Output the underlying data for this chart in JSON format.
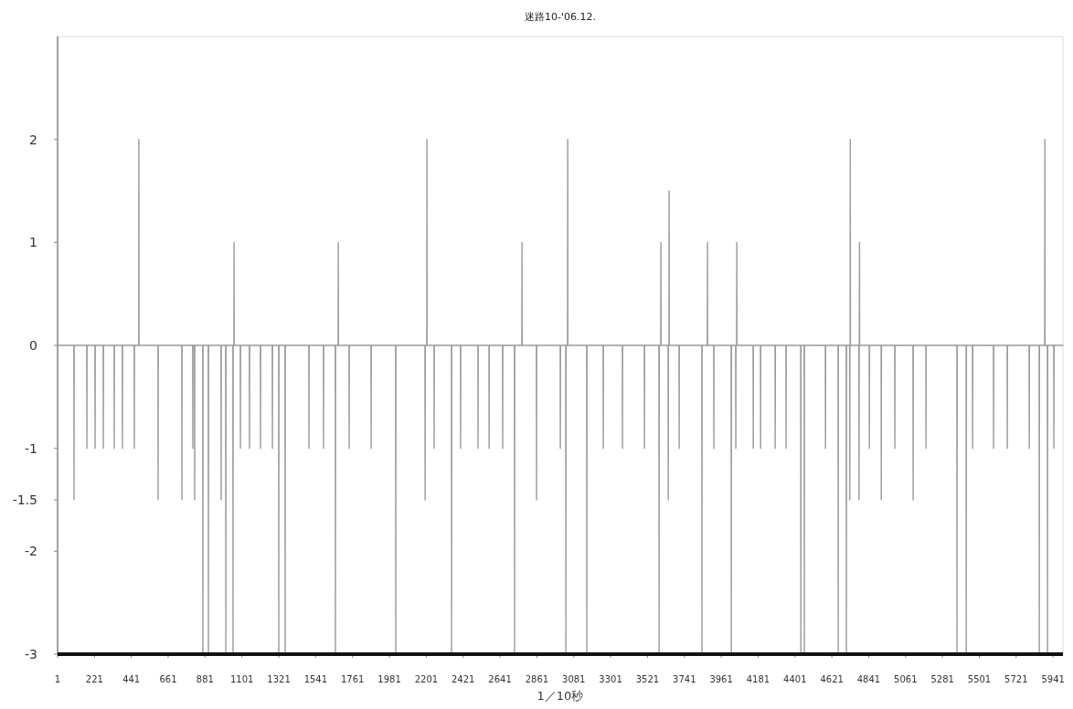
{
  "chart_data": {
    "type": "line",
    "title": "迷路10-'06.12.",
    "xlabel": "1／10秒",
    "xlim": [
      1,
      6000
    ],
    "xticks": [
      1,
      221,
      441,
      661,
      881,
      1101,
      1321,
      1541,
      1761,
      1981,
      2201,
      2421,
      2641,
      2861,
      3081,
      3301,
      3521,
      3741,
      3961,
      4181,
      4401,
      4621,
      4841,
      5061,
      5281,
      5501,
      5721,
      5941
    ],
    "ylim": [
      -3,
      3
    ],
    "yticks": [
      -3,
      -2,
      -1.5,
      -1,
      0,
      1,
      2
    ],
    "grid": false,
    "series": [
      {
        "color": "#9a9a9a",
        "x": [
          1,
          98,
          99,
          100,
          175,
          176,
          177,
          224,
          225,
          226,
          273,
          274,
          275,
          338,
          339,
          340,
          387,
          388,
          389,
          458,
          459,
          460,
          485,
          486,
          487,
          600,
          601,
          602,
          742,
          743,
          744,
          807,
          808,
          809,
          818,
          819,
          820,
          867,
          868,
          869,
          900,
          901,
          902,
          976,
          977,
          978,
          1004,
          1005,
          1006,
          1047,
          1048,
          1049,
          1053,
          1054,
          1055,
          1091,
          1092,
          1093,
          1145,
          1146,
          1147,
          1211,
          1212,
          1213,
          1282,
          1283,
          1284,
          1320,
          1321,
          1322,
          1358,
          1359,
          1360,
          1500,
          1501,
          1502,
          1587,
          1588,
          1589,
          1658,
          1659,
          1660,
          1675,
          1676,
          1677,
          1740,
          1741,
          1742,
          1871,
          1872,
          1873,
          2018,
          2019,
          2020,
          2193,
          2194,
          2195,
          2204,
          2205,
          2206,
          2247,
          2248,
          2249,
          2351,
          2352,
          2353,
          2405,
          2406,
          2407,
          2509,
          2510,
          2511,
          2575,
          2576,
          2577,
          2656,
          2657,
          2658,
          2727,
          2728,
          2729,
          2771,
          2772,
          2773,
          2858,
          2859,
          2860,
          3000,
          3001,
          3002,
          3033,
          3034,
          3035,
          3044,
          3045,
          3046,
          3158,
          3159,
          3160,
          3256,
          3257,
          3258,
          3371,
          3372,
          3373,
          3502,
          3503,
          3504,
          3589,
          3590,
          3591,
          3600,
          3601,
          3602,
          3644,
          3645,
          3646,
          3649,
          3650,
          3651,
          3709,
          3710,
          3711,
          3845,
          3846,
          3847,
          3878,
          3879,
          3880,
          3916,
          3917,
          3918,
          4020,
          4021,
          4022,
          4047,
          4048,
          4049,
          4053,
          4054,
          4055,
          4151,
          4152,
          4153,
          4195,
          4196,
          4197,
          4282,
          4283,
          4284,
          4347,
          4348,
          4349,
          4435,
          4436,
          4437,
          4456,
          4457,
          4458,
          4582,
          4583,
          4584,
          4658,
          4659,
          4660,
          4707,
          4708,
          4709,
          4727,
          4728,
          4729,
          4730,
          4731,
          4732,
          4782,
          4783,
          4784,
          4785,
          4786,
          4787,
          4844,
          4845,
          4846,
          4915,
          4916,
          4917,
          4996,
          4997,
          4998,
          5105,
          5106,
          5107,
          5182,
          5183,
          5184,
          5367,
          5368,
          5369,
          5422,
          5423,
          5424,
          5460,
          5461,
          5462,
          5585,
          5586,
          5587,
          5667,
          5668,
          5669,
          5798,
          5799,
          5800,
          5858,
          5859,
          5860,
          5891,
          5892,
          5893,
          5907,
          5908,
          5909,
          5945,
          5946,
          5947,
          6000
        ],
        "values": [
          0,
          0,
          -1.5,
          0,
          0,
          -1,
          0,
          0,
          -1,
          0,
          0,
          -1,
          0,
          0,
          -1,
          0,
          0,
          -1,
          0,
          0,
          -1,
          0,
          0,
          2,
          0,
          0,
          -1.5,
          0,
          0,
          -1.5,
          0,
          0,
          -1,
          0,
          0,
          -1.5,
          0,
          0,
          -3,
          0,
          0,
          -3,
          0,
          0,
          -1.5,
          0,
          0,
          -3,
          0,
          0,
          -3,
          0,
          0,
          1,
          0,
          0,
          -1,
          0,
          0,
          -1,
          0,
          0,
          -1,
          0,
          0,
          -1,
          0,
          0,
          -3,
          0,
          0,
          -3,
          0,
          0,
          -1,
          0,
          0,
          -1,
          0,
          0,
          -3,
          0,
          0,
          1,
          0,
          0,
          -1,
          0,
          0,
          -1,
          0,
          0,
          -3,
          0,
          0,
          -1.5,
          0,
          0,
          2,
          0,
          0,
          -1,
          0,
          0,
          -3,
          0,
          0,
          -1,
          0,
          0,
          -1,
          0,
          0,
          -1,
          0,
          0,
          -1,
          0,
          0,
          -3,
          0,
          0,
          1,
          0,
          0,
          -1.5,
          0,
          0,
          -1,
          0,
          0,
          -3,
          0,
          0,
          2,
          0,
          0,
          -3,
          0,
          0,
          -1,
          0,
          0,
          -1,
          0,
          0,
          -1,
          0,
          0,
          -3,
          0,
          0,
          1,
          0,
          0,
          -1.5,
          0,
          0,
          1.5,
          0,
          0,
          -1,
          0,
          0,
          -3,
          0,
          0,
          1,
          0,
          0,
          -1,
          0,
          0,
          -3,
          0,
          0,
          -1,
          0,
          0,
          1,
          0,
          0,
          -1,
          0,
          0,
          -1,
          0,
          0,
          -1,
          0,
          0,
          -1,
          0,
          0,
          -3,
          0,
          0,
          -3,
          0,
          0,
          -1,
          0,
          0,
          -3,
          0,
          0,
          -3,
          0,
          0,
          -1.5,
          0,
          0,
          2,
          0,
          0,
          -1.5,
          0,
          0,
          1,
          0,
          0,
          -1,
          0,
          0,
          -1.5,
          0,
          0,
          -1,
          0,
          0,
          -1.5,
          0,
          0,
          -1,
          0,
          0,
          -3,
          0,
          0,
          -3,
          0,
          0,
          -1,
          0,
          0,
          -1,
          0,
          0,
          -1,
          0,
          0,
          -1,
          0,
          0,
          -3,
          0,
          0,
          2,
          0,
          0,
          -3,
          0,
          0,
          -1,
          0,
          0
        ]
      }
    ]
  }
}
